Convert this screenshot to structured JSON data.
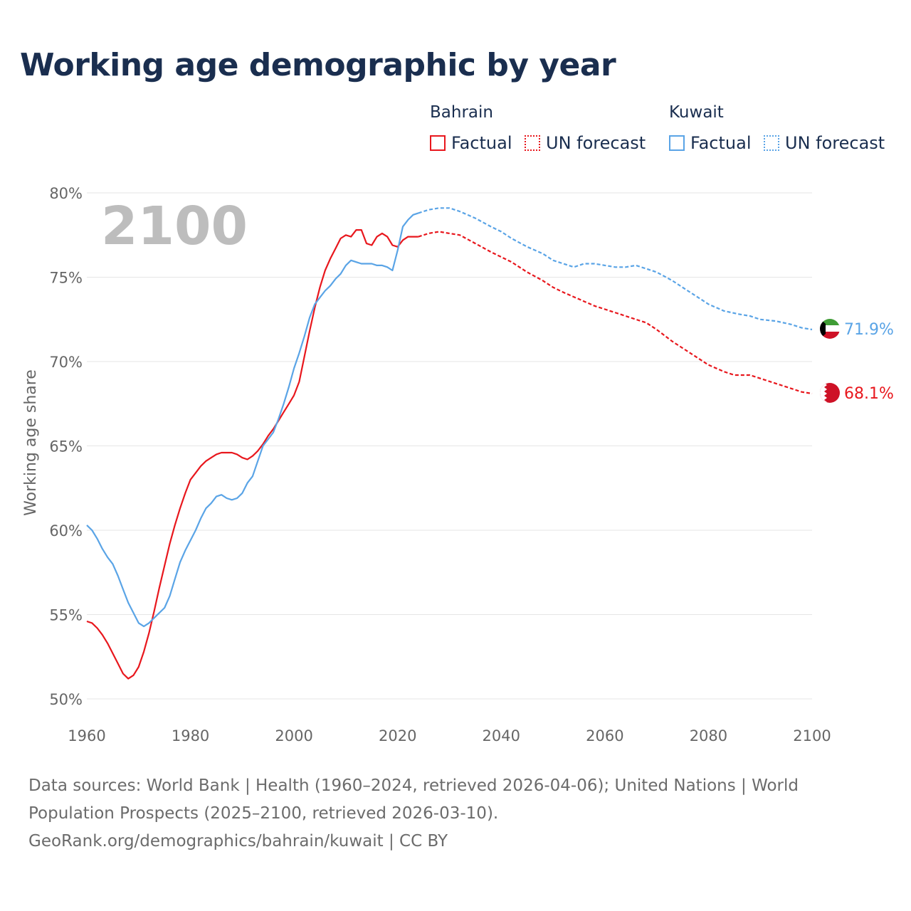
{
  "title": "Working age demographic by year",
  "legend": {
    "groups": [
      {
        "name": "Bahrain",
        "factual_label": "Factual",
        "forecast_label": "UN forecast",
        "color": "#e8171d"
      },
      {
        "name": "Kuwait",
        "factual_label": "Factual",
        "forecast_label": "UN forecast",
        "color": "#5aa4e6"
      }
    ]
  },
  "year_display": "2100",
  "footer": {
    "line1": "Data sources: World Bank | Health (1960–2024, retrieved 2026-04-06); United Nations | World",
    "line2": "Population Prospects (2025–2100, retrieved 2026-03-10).",
    "line3": "GeoRank.org/demographics/bahrain/kuwait | CC BY"
  },
  "chart_data": {
    "type": "line",
    "title": "Working age demographic by year",
    "xlabel": "",
    "ylabel": "Working age share",
    "xlim": [
      1960,
      2100
    ],
    "ylim": [
      50,
      80
    ],
    "x_ticks": [
      1960,
      1980,
      2000,
      2020,
      2040,
      2060,
      2080,
      2100
    ],
    "x_tick_labels": [
      "1960",
      "1980",
      "2000",
      "2020",
      "2040",
      "2060",
      "2080",
      "2100"
    ],
    "y_ticks": [
      50,
      55,
      60,
      65,
      70,
      75,
      80
    ],
    "y_tick_labels": [
      "50%",
      "55%",
      "60%",
      "65%",
      "70%",
      "75%",
      "80%"
    ],
    "grid": true,
    "series": [
      {
        "name": "Bahrain",
        "color": "#e8171d",
        "end_label": "68.1%",
        "factual": {
          "x": [
            1960,
            1961,
            1962,
            1963,
            1964,
            1965,
            1966,
            1967,
            1968,
            1969,
            1970,
            1971,
            1972,
            1973,
            1974,
            1975,
            1976,
            1977,
            1978,
            1979,
            1980,
            1981,
            1982,
            1983,
            1984,
            1985,
            1986,
            1987,
            1988,
            1989,
            1990,
            1991,
            1992,
            1993,
            1994,
            1995,
            1996,
            1997,
            1998,
            1999,
            2000,
            2001,
            2002,
            2003,
            2004,
            2005,
            2006,
            2007,
            2008,
            2009,
            2010,
            2011,
            2012,
            2013,
            2014,
            2015,
            2016,
            2017,
            2018,
            2019,
            2020,
            2021,
            2022,
            2023,
            2024
          ],
          "y": [
            54.6,
            54.5,
            54.2,
            53.8,
            53.3,
            52.7,
            52.1,
            51.5,
            51.2,
            51.4,
            51.9,
            52.8,
            53.9,
            55.2,
            56.6,
            57.9,
            59.2,
            60.3,
            61.3,
            62.2,
            63.0,
            63.4,
            63.8,
            64.1,
            64.3,
            64.5,
            64.6,
            64.6,
            64.6,
            64.5,
            64.3,
            64.2,
            64.4,
            64.7,
            65.1,
            65.6,
            66.0,
            66.5,
            67.0,
            67.5,
            68.0,
            68.8,
            70.3,
            71.8,
            73.2,
            74.4,
            75.4,
            76.1,
            76.7,
            77.3,
            77.5,
            77.4,
            77.8,
            77.8,
            77.0,
            76.9,
            77.4,
            77.6,
            77.4,
            76.9,
            76.8,
            77.2,
            77.4,
            77.4,
            77.4
          ]
        },
        "forecast": {
          "x": [
            2024,
            2026,
            2028,
            2030,
            2032,
            2035,
            2038,
            2040,
            2042,
            2045,
            2048,
            2050,
            2052,
            2055,
            2058,
            2060,
            2063,
            2066,
            2068,
            2070,
            2073,
            2076,
            2080,
            2083,
            2085,
            2088,
            2090,
            2093,
            2096,
            2098,
            2100
          ],
          "y": [
            77.4,
            77.6,
            77.7,
            77.6,
            77.5,
            77.0,
            76.5,
            76.2,
            75.9,
            75.3,
            74.8,
            74.4,
            74.1,
            73.7,
            73.3,
            73.1,
            72.8,
            72.5,
            72.3,
            71.9,
            71.2,
            70.6,
            69.8,
            69.4,
            69.2,
            69.2,
            69.0,
            68.7,
            68.4,
            68.2,
            68.1
          ]
        }
      },
      {
        "name": "Kuwait",
        "color": "#5aa4e6",
        "end_label": "71.9%",
        "factual": {
          "x": [
            1960,
            1961,
            1962,
            1963,
            1964,
            1965,
            1966,
            1967,
            1968,
            1969,
            1970,
            1971,
            1972,
            1973,
            1974,
            1975,
            1976,
            1977,
            1978,
            1979,
            1980,
            1981,
            1982,
            1983,
            1984,
            1985,
            1986,
            1987,
            1988,
            1989,
            1990,
            1991,
            1992,
            1993,
            1994,
            1995,
            1996,
            1997,
            1998,
            1999,
            2000,
            2001,
            2002,
            2003,
            2004,
            2005,
            2006,
            2007,
            2008,
            2009,
            2010,
            2011,
            2012,
            2013,
            2014,
            2015,
            2016,
            2017,
            2018,
            2019,
            2020,
            2021,
            2022,
            2023,
            2024
          ],
          "y": [
            60.3,
            60.0,
            59.5,
            58.9,
            58.4,
            58.0,
            57.3,
            56.5,
            55.7,
            55.1,
            54.5,
            54.3,
            54.5,
            54.8,
            55.1,
            55.4,
            56.1,
            57.1,
            58.1,
            58.8,
            59.4,
            60.0,
            60.7,
            61.3,
            61.6,
            62.0,
            62.1,
            61.9,
            61.8,
            61.9,
            62.2,
            62.8,
            63.2,
            64.1,
            65.0,
            65.4,
            65.8,
            66.6,
            67.5,
            68.5,
            69.6,
            70.5,
            71.5,
            72.6,
            73.4,
            73.8,
            74.2,
            74.5,
            74.9,
            75.2,
            75.7,
            76.0,
            75.9,
            75.8,
            75.8,
            75.8,
            75.7,
            75.7,
            75.6,
            75.4,
            76.6,
            78.0,
            78.4,
            78.7,
            78.8
          ]
        },
        "forecast": {
          "x": [
            2024,
            2026,
            2028,
            2030,
            2032,
            2035,
            2038,
            2040,
            2042,
            2045,
            2048,
            2050,
            2052,
            2054,
            2056,
            2058,
            2060,
            2062,
            2064,
            2066,
            2068,
            2070,
            2073,
            2076,
            2078,
            2080,
            2083,
            2086,
            2088,
            2090,
            2093,
            2096,
            2098,
            2100
          ],
          "y": [
            78.8,
            79.0,
            79.1,
            79.1,
            78.9,
            78.5,
            78.0,
            77.7,
            77.3,
            76.8,
            76.4,
            76.0,
            75.8,
            75.6,
            75.8,
            75.8,
            75.7,
            75.6,
            75.6,
            75.7,
            75.5,
            75.3,
            74.8,
            74.2,
            73.8,
            73.4,
            73.0,
            72.8,
            72.7,
            72.5,
            72.4,
            72.2,
            72.0,
            71.9
          ]
        }
      }
    ]
  }
}
